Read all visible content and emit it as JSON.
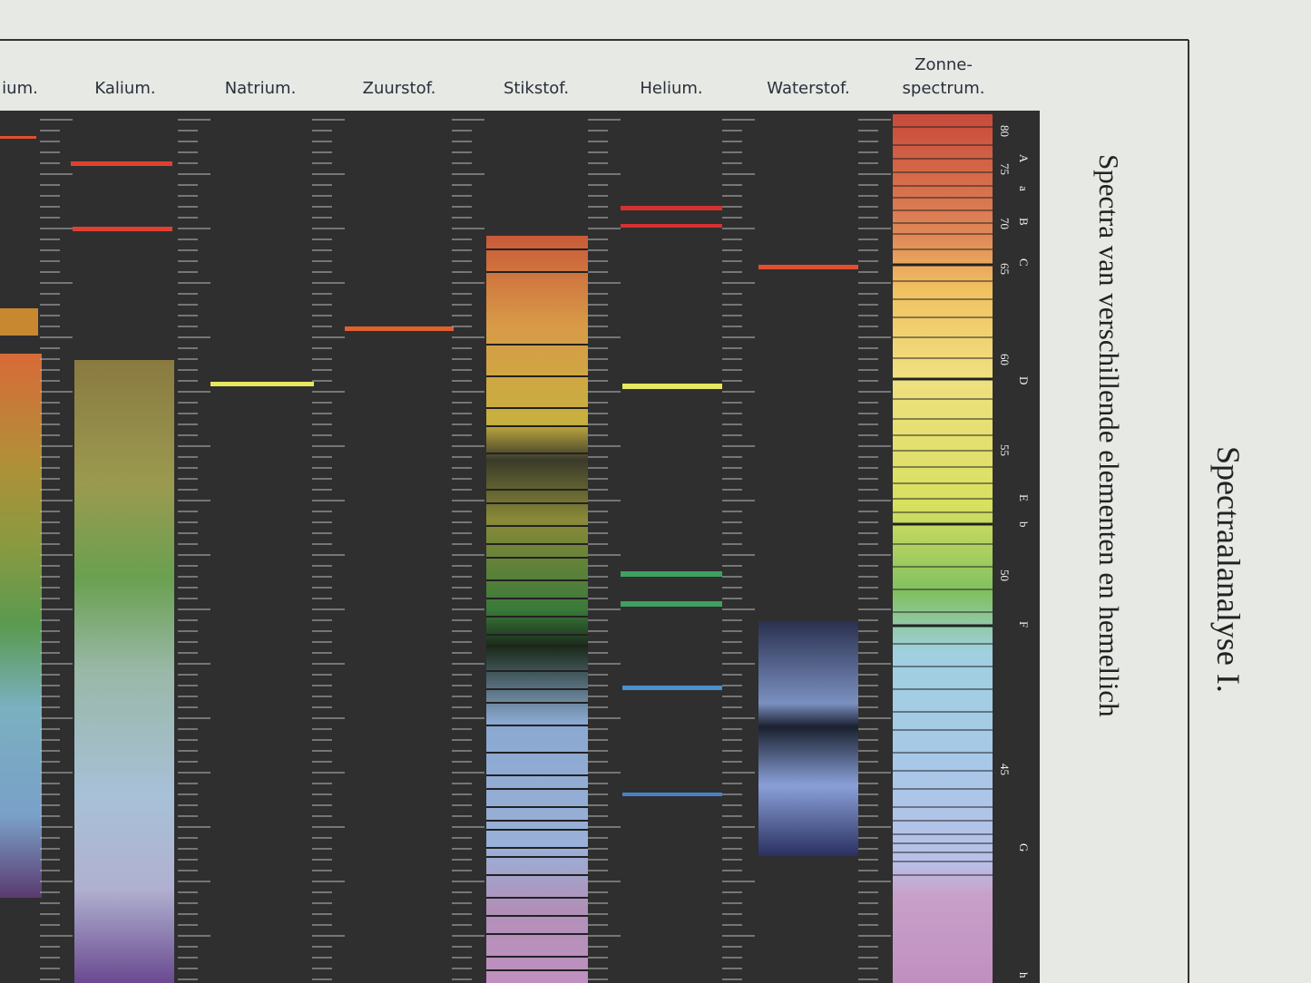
{
  "header": {
    "columns": [
      "ium.",
      "Kalium.",
      "Natrium.",
      "Zuurstof.",
      "Stikstof.",
      "Helium.",
      "Waterstof."
    ],
    "solar": [
      "Zonne-",
      "spectrum."
    ]
  },
  "title": "Spectraalanalyse I.",
  "subtitle": "Spectra van verschillende elementen en hemellich",
  "scale": {
    "letters": [
      "A",
      "a",
      "B",
      "C",
      "D",
      "E",
      "b",
      "F",
      "G",
      "h"
    ],
    "numbers": [
      "80",
      "75",
      "70",
      "65",
      "60",
      "55",
      "50",
      "45"
    ]
  }
}
